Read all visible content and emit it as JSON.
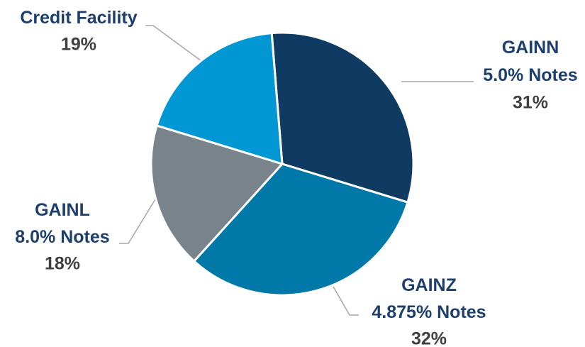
{
  "chart_data": {
    "type": "pie",
    "categories": [
      "GAINN\n5.0% Notes",
      "GAINZ\n4.875% Notes",
      "GAINL\n8.0% Notes",
      "Credit Facility"
    ],
    "values": [
      31,
      32,
      18,
      19
    ],
    "value_labels": [
      "31%",
      "32%",
      "18%",
      "19%"
    ],
    "colors": [
      "#0f3b63",
      "#0078a8",
      "#78838c",
      "#0097d4"
    ]
  }
}
